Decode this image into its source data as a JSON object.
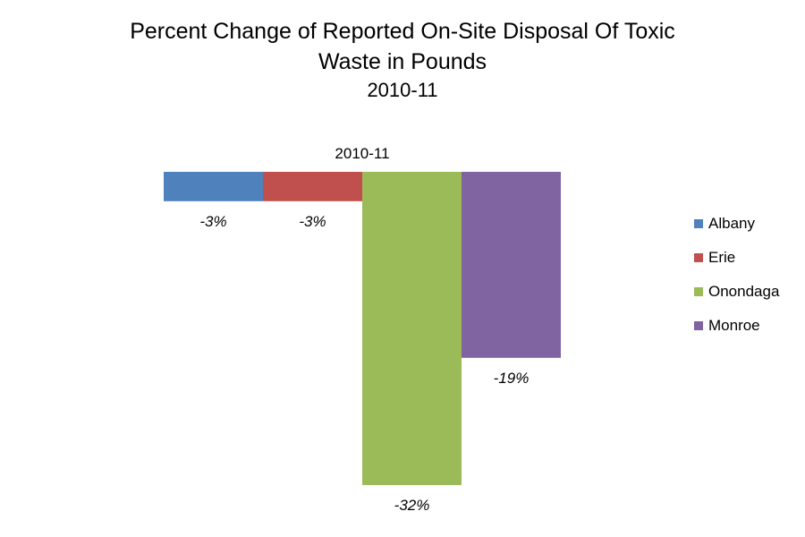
{
  "chart_data": {
    "type": "bar",
    "title_lines": [
      "Percent Change of Reported On-Site Disposal Of Toxic",
      "Waste in Pounds"
    ],
    "subtitle": "2010-11",
    "category_label": "2010-11",
    "categories": [
      "2010-11"
    ],
    "series": [
      {
        "name": "Albany",
        "values": [
          -3
        ],
        "label": "-3%",
        "color": "#4F81BD"
      },
      {
        "name": "Erie",
        "values": [
          -3
        ],
        "label": "-3%",
        "color": "#C0504D"
      },
      {
        "name": "Onondaga",
        "values": [
          -32
        ],
        "label": "-32%",
        "color": "#9BBB59"
      },
      {
        "name": "Monroe",
        "values": [
          -19
        ],
        "label": "-19%",
        "color": "#8064A2"
      }
    ],
    "ylim": [
      -32,
      0
    ],
    "grid": false,
    "legend": "right"
  }
}
